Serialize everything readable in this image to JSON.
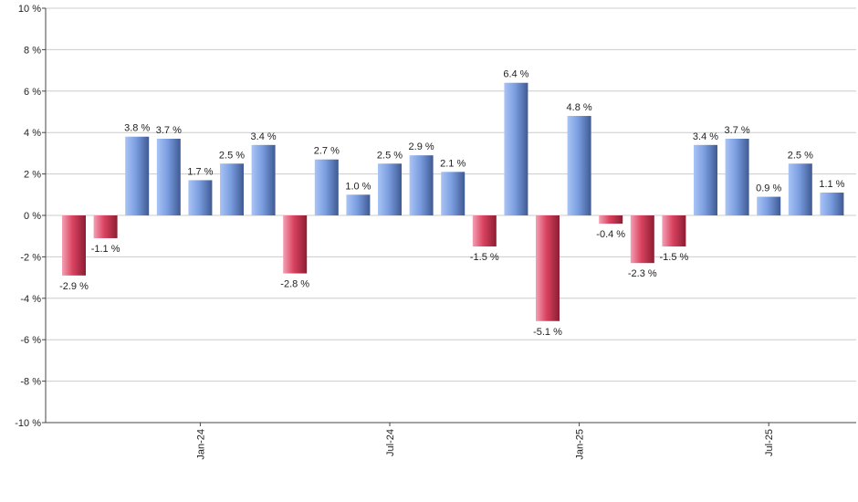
{
  "chart_data": {
    "type": "bar",
    "title": "",
    "xlabel": "",
    "ylabel": "",
    "ylim": [
      -10,
      10
    ],
    "y_ticks": [
      -10,
      -8,
      -6,
      -4,
      -2,
      0,
      2,
      4,
      6,
      8,
      10
    ],
    "y_unit": " %",
    "grid": true,
    "x_tick_labels": [
      {
        "label": "Jan-24",
        "index": 4
      },
      {
        "label": "Jul-24",
        "index": 10
      },
      {
        "label": "Jan-25",
        "index": 16
      },
      {
        "label": "Jul-25",
        "index": 22
      }
    ],
    "values": [
      -2.9,
      -1.1,
      3.8,
      3.7,
      1.7,
      2.5,
      3.4,
      -2.8,
      2.7,
      1.0,
      2.5,
      2.9,
      2.1,
      -1.5,
      6.4,
      -5.1,
      4.8,
      -0.4,
      -2.3,
      -1.5,
      3.4,
      3.7,
      0.9,
      2.5,
      1.1
    ],
    "value_labels": [
      "-2.9 %",
      "-1.1 %",
      "3.8 %",
      "3.7 %",
      "1.7 %",
      "2.5 %",
      "3.4 %",
      "-2.8 %",
      "2.7 %",
      "1.0 %",
      "2.5 %",
      "2.9 %",
      "2.1 %",
      "-1.5 %",
      "6.4 %",
      "-5.1 %",
      "4.8 %",
      "-0.4 %",
      "-2.3 %",
      "-1.5 %",
      "3.4 %",
      "3.7 %",
      "0.9 %",
      "2.5 %",
      "1.1 %"
    ],
    "colors": {
      "positive_light": "#a9c4f5",
      "positive_mid": "#7b9ee0",
      "positive_dark": "#3f5a94",
      "negative_light": "#f4a0b4",
      "negative_mid": "#d9425f",
      "negative_dark": "#8c1d33",
      "grid": "#cccccc",
      "axis": "#444444"
    }
  }
}
